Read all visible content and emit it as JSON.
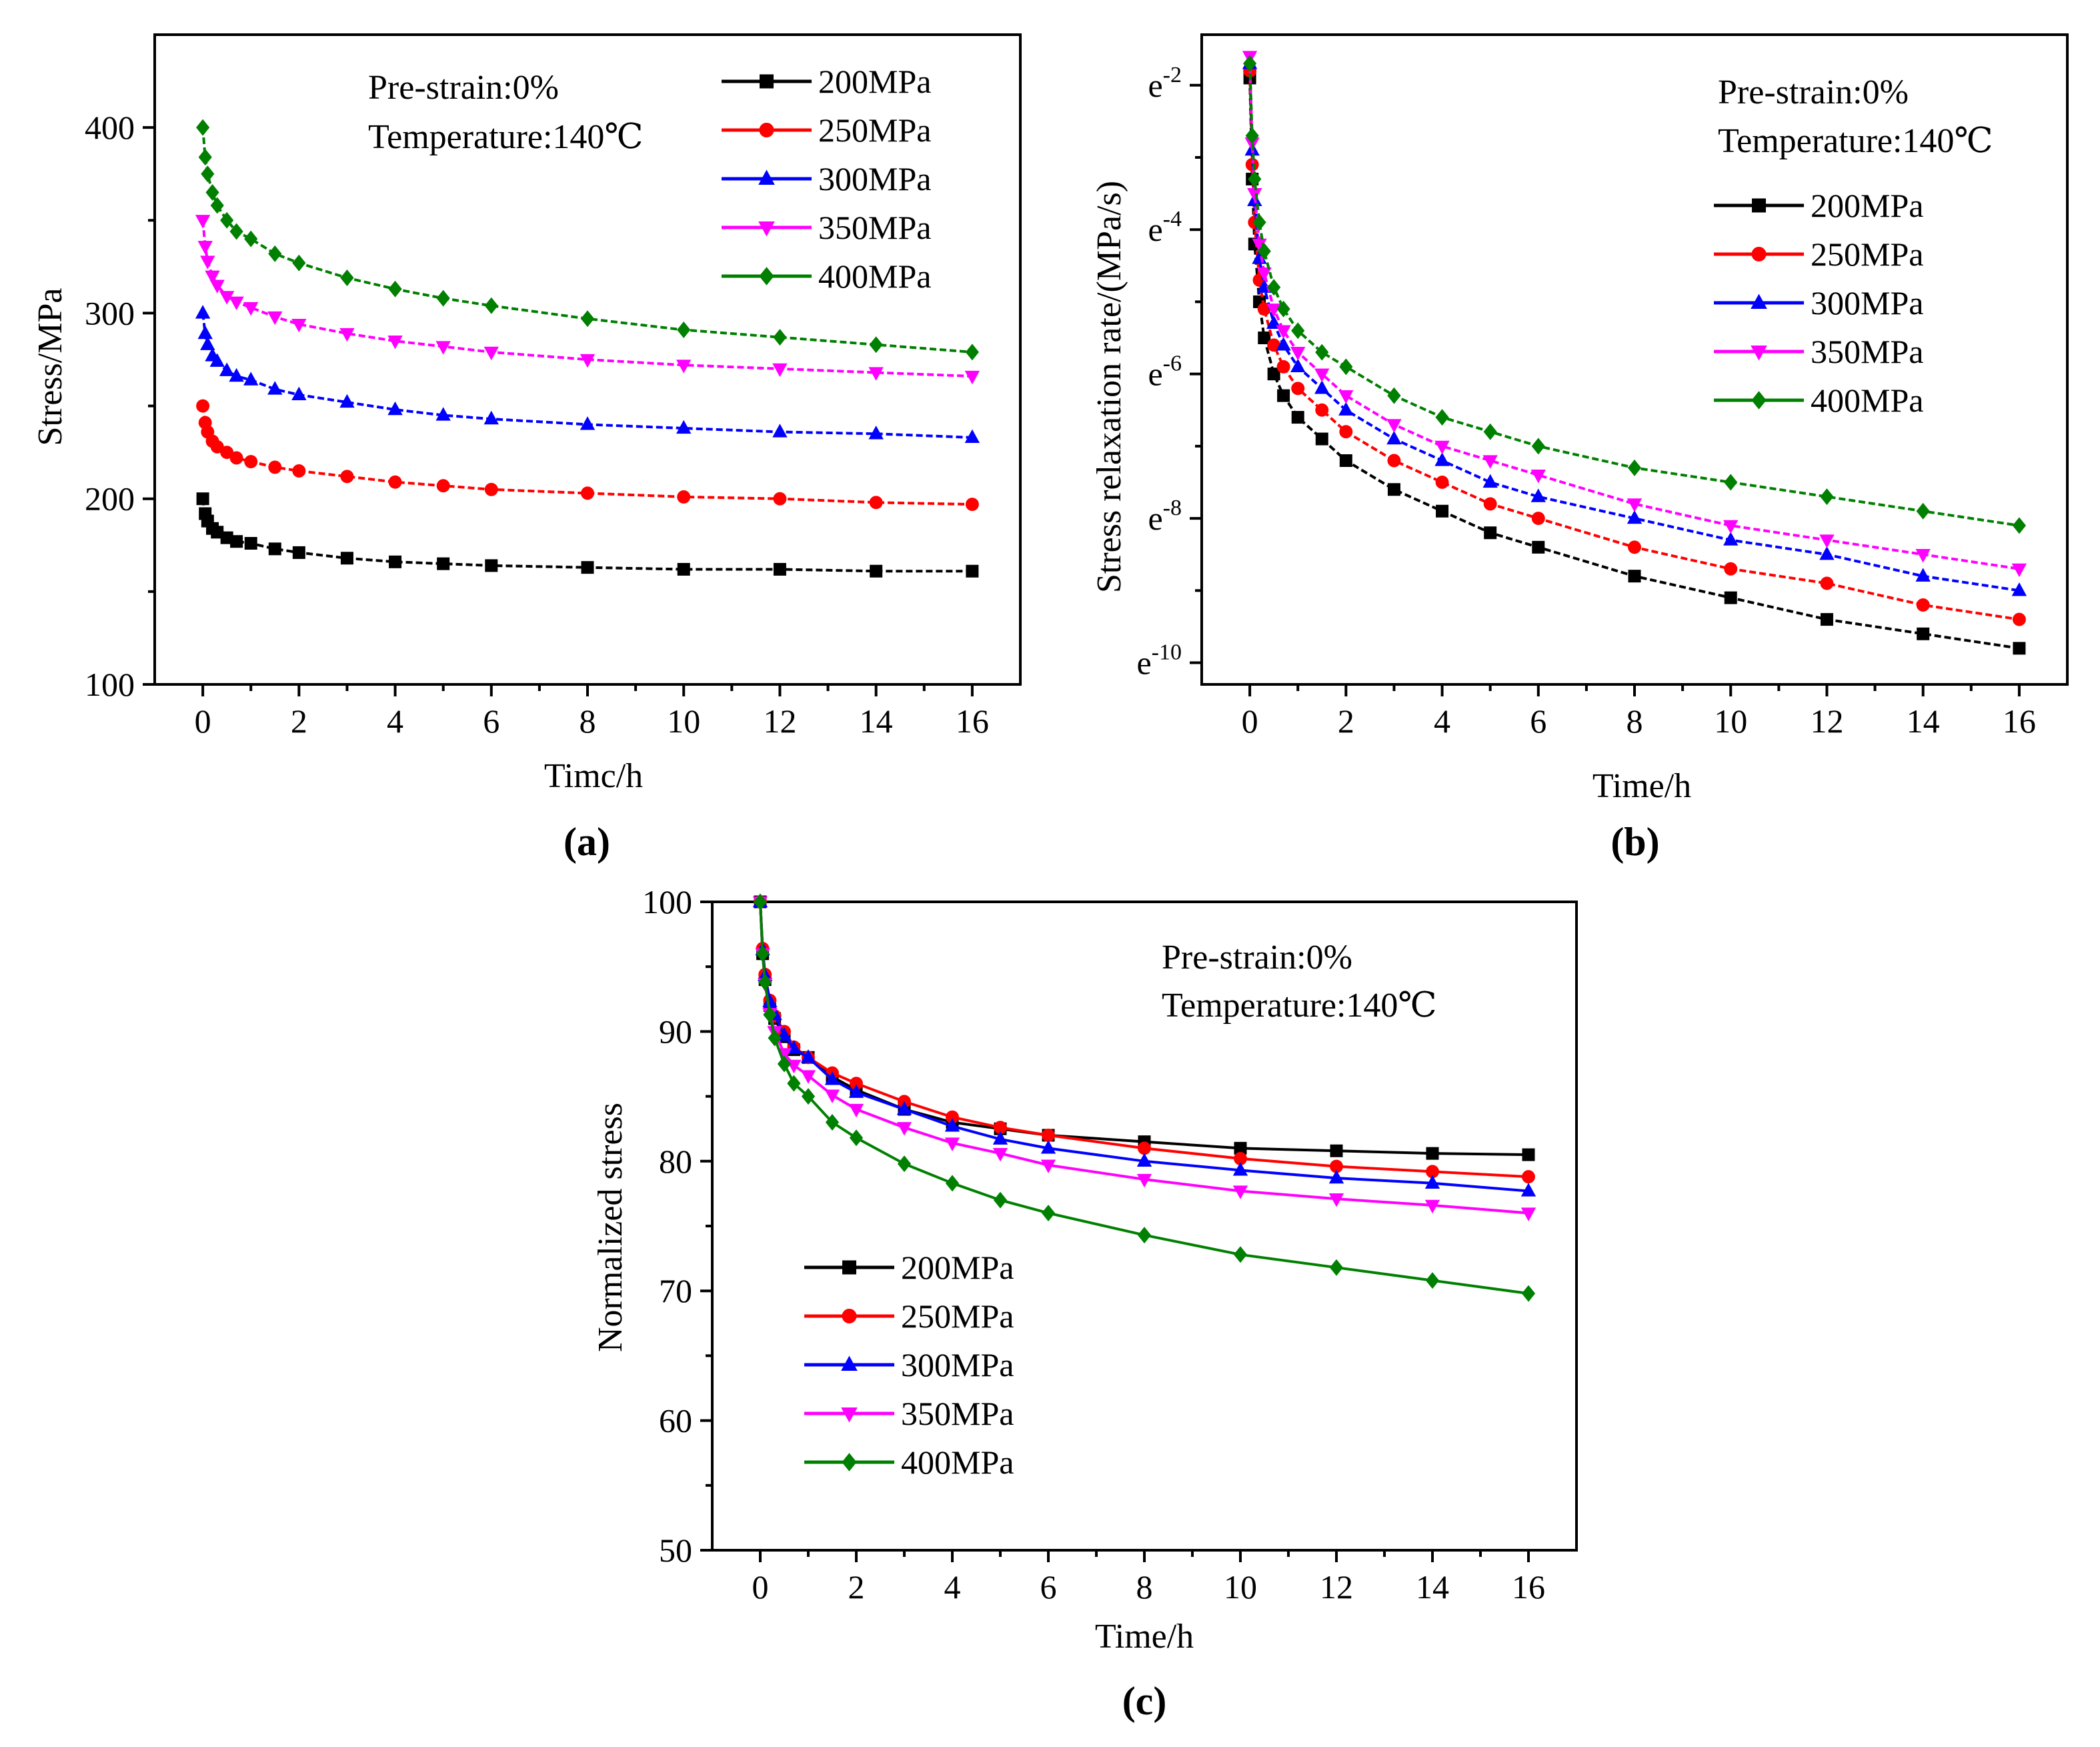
{
  "colors": {
    "200MPa": "#000000",
    "250MPa": "#ff0000",
    "300MPa": "#0000ff",
    "350MPa": "#ff00ff",
    "400MPa": "#008000"
  },
  "chart_data": [
    {
      "panel": "(a)",
      "type": "line",
      "title": "",
      "xlabel": "Timc/h",
      "ylabel": "Stress/MPa",
      "xlim": [
        -1,
        17
      ],
      "ylim": [
        100,
        450
      ],
      "xticks": [
        0,
        2,
        4,
        6,
        8,
        10,
        12,
        14,
        16
      ],
      "yticks": [
        100,
        200,
        300,
        400
      ],
      "ytick_labels": [
        "100",
        "200",
        "300",
        "400"
      ],
      "annotations": [
        "Pre-strain:0%",
        "Temperature:140℃"
      ],
      "legend": [
        "200MPa",
        "250MPa",
        "300MPa",
        "350MPa",
        "400MPa"
      ],
      "legend_position": "top-right",
      "x": [
        0,
        0.05,
        0.1,
        0.2,
        0.3,
        0.5,
        0.7,
        1,
        1.5,
        2,
        3,
        4,
        5,
        6,
        8,
        10,
        12,
        14,
        16
      ],
      "series": [
        {
          "name": "200MPa",
          "marker": "square",
          "values": [
            200,
            192,
            188,
            184,
            182,
            179,
            177,
            176,
            173,
            171,
            168,
            166,
            165,
            164,
            163,
            162,
            162,
            161,
            161
          ]
        },
        {
          "name": "250MPa",
          "marker": "circle",
          "values": [
            250,
            241,
            236,
            231,
            228,
            225,
            222,
            220,
            217,
            215,
            212,
            209,
            207,
            205,
            203,
            201,
            200,
            198,
            197
          ]
        },
        {
          "name": "300MPa",
          "marker": "triangle-up",
          "values": [
            300,
            289,
            283,
            277,
            274,
            269,
            266,
            264,
            259,
            256,
            252,
            248,
            245,
            243,
            240,
            238,
            236,
            235,
            233
          ]
        },
        {
          "name": "350MPa",
          "marker": "triangle-down",
          "values": [
            350,
            336,
            328,
            320,
            315,
            309,
            306,
            303,
            298,
            294,
            289,
            285,
            282,
            279,
            275,
            272,
            270,
            268,
            266
          ]
        },
        {
          "name": "400MPa",
          "marker": "diamond",
          "values": [
            400,
            384,
            375,
            365,
            358,
            350,
            344,
            340,
            332,
            327,
            319,
            313,
            308,
            304,
            297,
            291,
            287,
            283,
            279
          ]
        }
      ]
    },
    {
      "panel": "(b)",
      "type": "line",
      "title": "",
      "xlabel": "Time/h",
      "ylabel": "Stress relaxation rate/(MPa/s)",
      "xlim": [
        -1,
        17
      ],
      "ylim": [
        -10.3,
        -1.3
      ],
      "y_scale": "ln (values are natural-log exponents)",
      "xticks": [
        0,
        2,
        4,
        6,
        8,
        10,
        12,
        14,
        16
      ],
      "yticks": [
        -10,
        -8,
        -6,
        -4,
        -2
      ],
      "ytick_labels": [
        "e-10",
        "e-8",
        "e-6",
        "e-4",
        "e-2"
      ],
      "annotations": [
        "Pre-strain:0%",
        "Temperature:140℃"
      ],
      "legend": [
        "200MPa",
        "250MPa",
        "300MPa",
        "350MPa",
        "400MPa"
      ],
      "legend_position": "top-right",
      "x": [
        0,
        0.05,
        0.1,
        0.2,
        0.3,
        0.5,
        0.7,
        1,
        1.5,
        2,
        3,
        4,
        5,
        6,
        8,
        10,
        12,
        14,
        16
      ],
      "series": [
        {
          "name": "200MPa",
          "marker": "square",
          "values": [
            -1.9,
            -3.3,
            -4.2,
            -5.0,
            -5.5,
            -6.0,
            -6.3,
            -6.6,
            -6.9,
            -7.2,
            -7.6,
            -7.9,
            -8.2,
            -8.4,
            -8.8,
            -9.1,
            -9.4,
            -9.6,
            -9.8
          ]
        },
        {
          "name": "250MPa",
          "marker": "circle",
          "values": [
            -1.8,
            -3.1,
            -3.9,
            -4.7,
            -5.1,
            -5.6,
            -5.9,
            -6.2,
            -6.5,
            -6.8,
            -7.2,
            -7.5,
            -7.8,
            -8.0,
            -8.4,
            -8.7,
            -8.9,
            -9.2,
            -9.4
          ]
        },
        {
          "name": "300MPa",
          "marker": "triangle-up",
          "values": [
            -1.7,
            -2.9,
            -3.6,
            -4.4,
            -4.8,
            -5.3,
            -5.6,
            -5.9,
            -6.2,
            -6.5,
            -6.9,
            -7.2,
            -7.5,
            -7.7,
            -8.0,
            -8.3,
            -8.5,
            -8.8,
            -9.0
          ]
        },
        {
          "name": "350MPa",
          "marker": "triangle-down",
          "values": [
            -1.6,
            -2.8,
            -3.5,
            -4.2,
            -4.6,
            -5.1,
            -5.4,
            -5.7,
            -6.0,
            -6.3,
            -6.7,
            -7.0,
            -7.2,
            -7.4,
            -7.8,
            -8.1,
            -8.3,
            -8.5,
            -8.7
          ]
        },
        {
          "name": "400MPa",
          "marker": "diamond",
          "values": [
            -1.7,
            -2.7,
            -3.3,
            -3.9,
            -4.3,
            -4.8,
            -5.1,
            -5.4,
            -5.7,
            -5.9,
            -6.3,
            -6.6,
            -6.8,
            -7.0,
            -7.3,
            -7.5,
            -7.7,
            -7.9,
            -8.1
          ]
        }
      ]
    },
    {
      "panel": "(c)",
      "type": "line",
      "title": "",
      "xlabel": "Time/h",
      "ylabel": "Normalized stress",
      "xlim": [
        -1,
        17
      ],
      "ylim": [
        50,
        100
      ],
      "xticks": [
        0,
        2,
        4,
        6,
        8,
        10,
        12,
        14,
        16
      ],
      "yticks": [
        50,
        60,
        70,
        80,
        90,
        100
      ],
      "ytick_labels": [
        "50",
        "60",
        "70",
        "80",
        "90",
        "100"
      ],
      "annotations": [
        "Pre-strain:0%",
        "Temperature:140℃"
      ],
      "legend": [
        "200MPa",
        "250MPa",
        "300MPa",
        "350MPa",
        "400MPa"
      ],
      "legend_position": "bottom-left",
      "x": [
        0,
        0.05,
        0.1,
        0.2,
        0.3,
        0.5,
        0.7,
        1,
        1.5,
        2,
        3,
        4,
        5,
        6,
        8,
        10,
        12,
        14,
        16
      ],
      "series": [
        {
          "name": "200MPa",
          "marker": "square",
          "values": [
            100,
            96,
            94,
            92,
            91,
            89.6,
            88.6,
            88,
            86.5,
            85.5,
            84,
            83,
            82.5,
            82,
            81.5,
            81,
            80.8,
            80.6,
            80.5
          ]
        },
        {
          "name": "250MPa",
          "marker": "circle",
          "values": [
            100,
            96.4,
            94.4,
            92.4,
            91.2,
            90,
            88.8,
            88,
            86.8,
            86,
            84.6,
            83.4,
            82.6,
            82,
            81,
            80.2,
            79.6,
            79.2,
            78.8
          ]
        },
        {
          "name": "300MPa",
          "marker": "triangle-up",
          "values": [
            100,
            96.3,
            94.3,
            92.3,
            91.3,
            89.7,
            88.7,
            88,
            86.3,
            85.3,
            84,
            82.7,
            81.7,
            81,
            80,
            79.3,
            78.7,
            78.3,
            77.7
          ]
        },
        {
          "name": "350MPa",
          "marker": "triangle-down",
          "values": [
            100,
            96,
            93.7,
            91.4,
            90,
            88.3,
            87.4,
            86.6,
            85.1,
            84,
            82.6,
            81.4,
            80.6,
            79.7,
            78.6,
            77.7,
            77.1,
            76.6,
            76
          ]
        },
        {
          "name": "400MPa",
          "marker": "diamond",
          "values": [
            100,
            96,
            93.8,
            91.3,
            89.5,
            87.5,
            86,
            85,
            83,
            81.8,
            79.8,
            78.3,
            77,
            76,
            74.3,
            72.8,
            71.8,
            70.8,
            69.8
          ]
        }
      ]
    }
  ]
}
